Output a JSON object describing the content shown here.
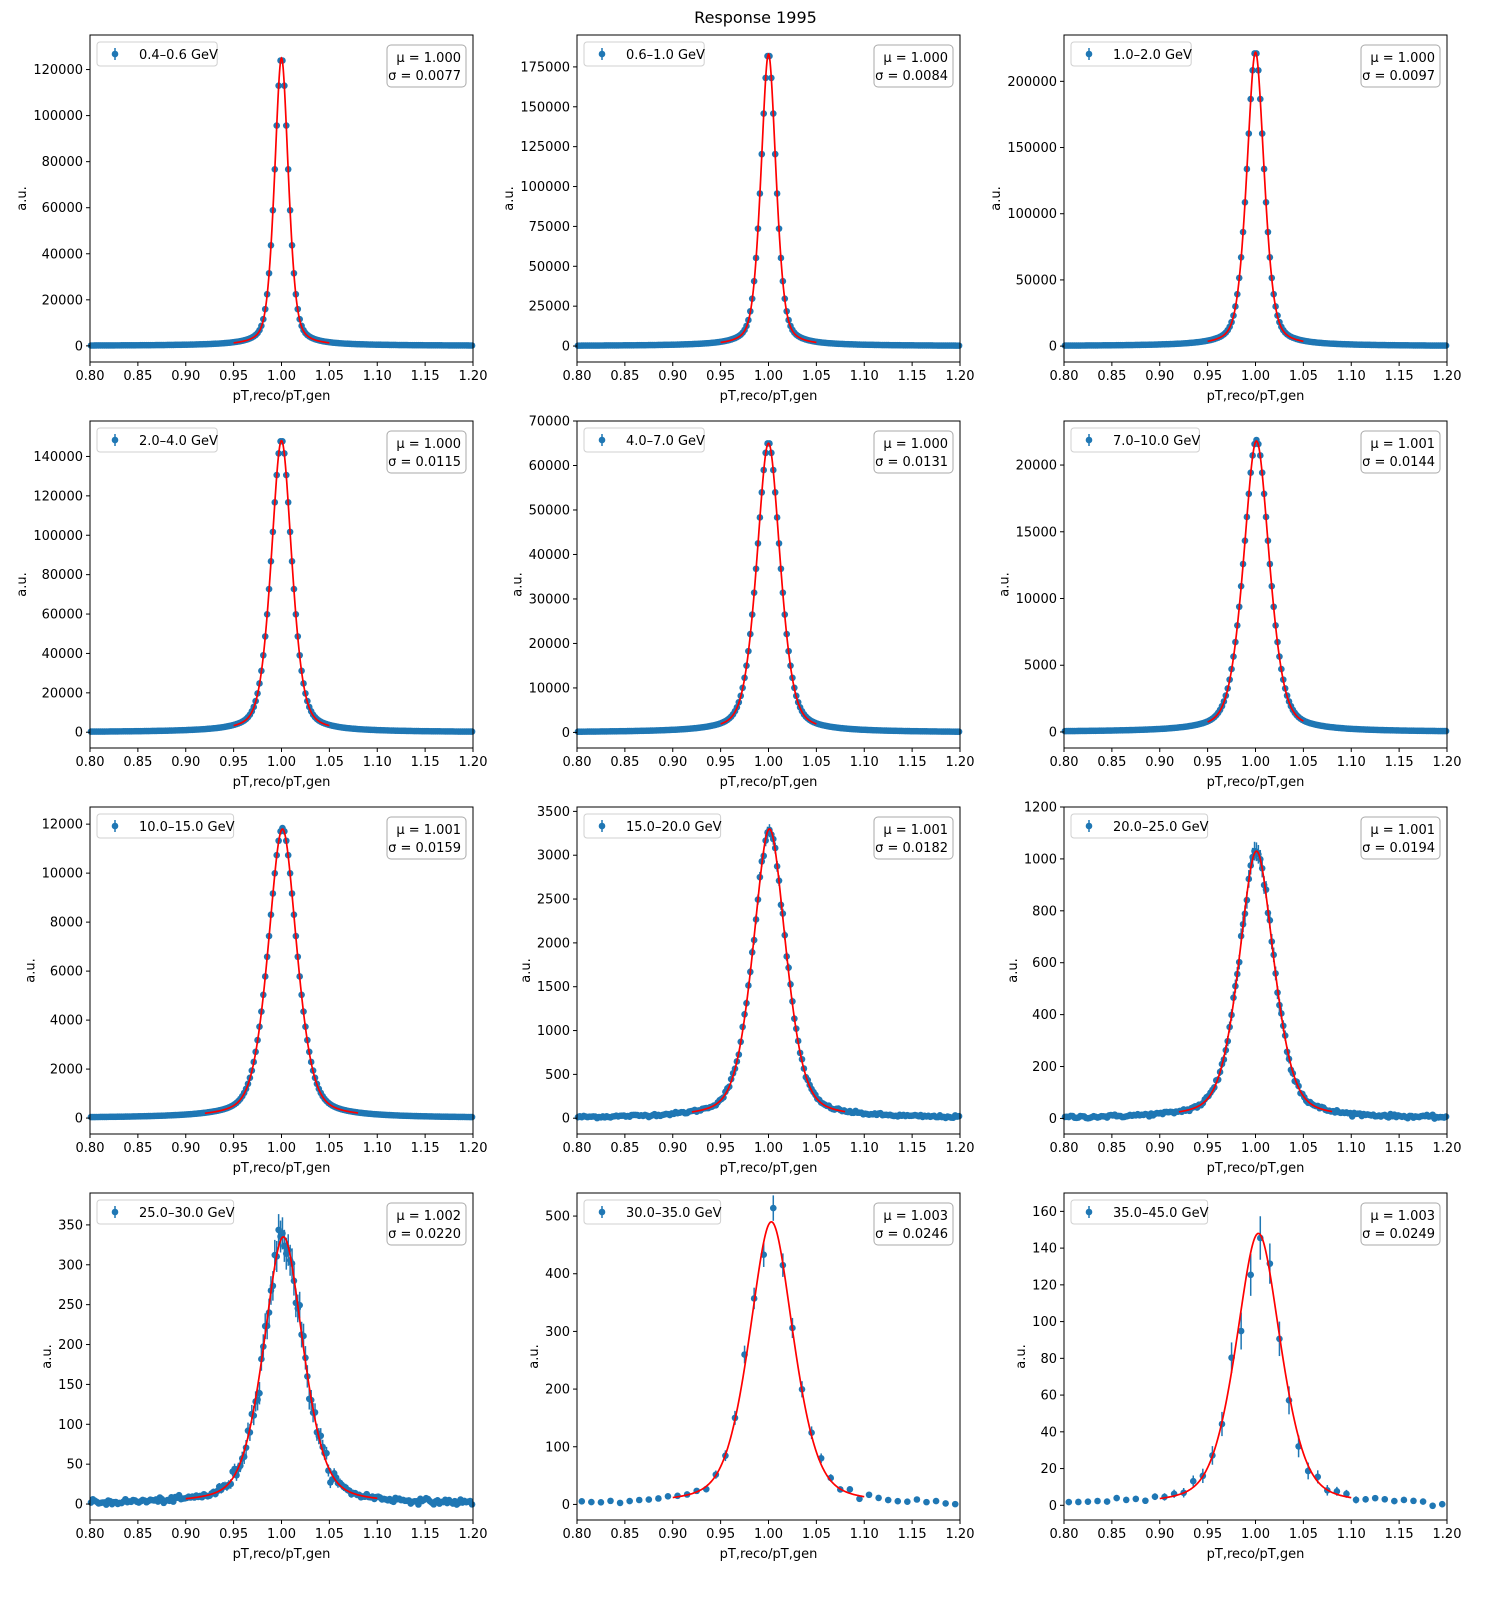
{
  "figure_title": "Response 1995",
  "colors": {
    "data": "#1f77b4",
    "fit": "#ff0000",
    "axes": "#000000",
    "box_edge": "#aaaaaa"
  },
  "chart_data": [
    {
      "type": "scatter",
      "panel_label": "0.4–0.6 GeV",
      "mu_text": "μ = 1.000",
      "sigma_text": "σ = 0.0077",
      "mu": 1.0,
      "sigma": 0.0077,
      "peak": 125000,
      "stat_rel": 0.003,
      "fit_range": [
        0.95,
        1.05
      ],
      "xlim": [
        0.8,
        1.2
      ],
      "ylim": [
        -7000,
        135000
      ],
      "xticks": [
        "0.80",
        "0.85",
        "0.90",
        "0.95",
        "1.00",
        "1.05",
        "1.10",
        "1.15",
        "1.20"
      ],
      "yticks": [
        0,
        20000,
        40000,
        60000,
        80000,
        100000,
        120000
      ],
      "xlabel": "pT,reco/pT,gen",
      "ylabel": "a.u.",
      "legend": "data with error bars",
      "legend_loc": "upper left",
      "stats_loc": "upper right"
    },
    {
      "type": "scatter",
      "panel_label": "0.6–1.0 GeV",
      "mu_text": "μ = 1.000",
      "sigma_text": "σ = 0.0084",
      "mu": 1.0,
      "sigma": 0.0084,
      "peak": 183000,
      "stat_rel": 0.003,
      "fit_range": [
        0.95,
        1.05
      ],
      "xlim": [
        0.8,
        1.2
      ],
      "ylim": [
        -10000,
        195000
      ],
      "xticks": [
        "0.80",
        "0.85",
        "0.90",
        "0.95",
        "1.00",
        "1.05",
        "1.10",
        "1.15",
        "1.20"
      ],
      "yticks": [
        0,
        25000,
        50000,
        75000,
        100000,
        125000,
        150000,
        175000
      ],
      "xlabel": "pT,reco/pT,gen",
      "ylabel": "a.u.",
      "legend": "data with error bars",
      "legend_loc": "upper left",
      "stats_loc": "upper right"
    },
    {
      "type": "scatter",
      "panel_label": "1.0–2.0 GeV",
      "mu_text": "μ = 1.000",
      "sigma_text": "σ = 0.0097",
      "mu": 1.0,
      "sigma": 0.0097,
      "peak": 222000,
      "stat_rel": 0.003,
      "fit_range": [
        0.95,
        1.05
      ],
      "xlim": [
        0.8,
        1.2
      ],
      "ylim": [
        -12000,
        235000
      ],
      "xticks": [
        "0.80",
        "0.85",
        "0.90",
        "0.95",
        "1.00",
        "1.05",
        "1.10",
        "1.15",
        "1.20"
      ],
      "yticks": [
        0,
        50000,
        100000,
        150000,
        200000
      ],
      "xlabel": "pT,reco/pT,gen",
      "ylabel": "a.u.",
      "legend": "data with error bars",
      "legend_loc": "upper left",
      "stats_loc": "upper right"
    },
    {
      "type": "scatter",
      "panel_label": "2.0–4.0 GeV",
      "mu_text": "μ = 1.000",
      "sigma_text": "σ = 0.0115",
      "mu": 1.0,
      "sigma": 0.0115,
      "peak": 148000,
      "stat_rel": 0.003,
      "fit_range": [
        0.95,
        1.05
      ],
      "xlim": [
        0.8,
        1.2
      ],
      "ylim": [
        -8000,
        158000
      ],
      "xticks": [
        "0.80",
        "0.85",
        "0.90",
        "0.95",
        "1.00",
        "1.05",
        "1.10",
        "1.15",
        "1.20"
      ],
      "yticks": [
        0,
        20000,
        40000,
        60000,
        80000,
        100000,
        120000,
        140000
      ],
      "xlabel": "pT,reco/pT,gen",
      "ylabel": "a.u.",
      "legend": "data with error bars",
      "legend_loc": "upper left",
      "stats_loc": "upper right"
    },
    {
      "type": "scatter",
      "panel_label": "4.0–7.0 GeV",
      "mu_text": "μ = 1.000",
      "sigma_text": "σ = 0.0131",
      "mu": 1.0,
      "sigma": 0.0131,
      "peak": 65000,
      "stat_rel": 0.004,
      "fit_range": [
        0.95,
        1.05
      ],
      "xlim": [
        0.8,
        1.2
      ],
      "ylim": [
        -3500,
        70000
      ],
      "xticks": [
        "0.80",
        "0.85",
        "0.90",
        "0.95",
        "1.00",
        "1.05",
        "1.10",
        "1.15",
        "1.20"
      ],
      "yticks": [
        0,
        10000,
        20000,
        30000,
        40000,
        50000,
        60000,
        70000
      ],
      "xlabel": "pT,reco/pT,gen",
      "ylabel": "a.u.",
      "legend": "data with error bars",
      "legend_loc": "upper left",
      "stats_loc": "upper right"
    },
    {
      "type": "scatter",
      "panel_label": "7.0–10.0 GeV",
      "mu_text": "μ = 1.001",
      "sigma_text": "σ = 0.0144",
      "mu": 1.001,
      "sigma": 0.0144,
      "peak": 21800,
      "stat_rel": 0.006,
      "fit_range": [
        0.95,
        1.05
      ],
      "xlim": [
        0.8,
        1.2
      ],
      "ylim": [
        -1200,
        23300
      ],
      "xticks": [
        "0.80",
        "0.85",
        "0.90",
        "0.95",
        "1.00",
        "1.05",
        "1.10",
        "1.15",
        "1.20"
      ],
      "yticks": [
        0,
        5000,
        10000,
        15000,
        20000
      ],
      "xlabel": "pT,reco/pT,gen",
      "ylabel": "a.u.",
      "legend": "data with error bars",
      "legend_loc": "upper left",
      "stats_loc": "upper right"
    },
    {
      "type": "scatter",
      "panel_label": "10.0–15.0 GeV",
      "mu_text": "μ = 1.001",
      "sigma_text": "σ = 0.0159",
      "mu": 1.001,
      "sigma": 0.0159,
      "peak": 11800,
      "stat_rel": 0.01,
      "fit_range": [
        0.92,
        1.08
      ],
      "xlim": [
        0.8,
        1.2
      ],
      "ylim": [
        -650,
        12700
      ],
      "xticks": [
        "0.80",
        "0.85",
        "0.90",
        "0.95",
        "1.00",
        "1.05",
        "1.10",
        "1.15",
        "1.20"
      ],
      "yticks": [
        0,
        2000,
        4000,
        6000,
        8000,
        10000,
        12000
      ],
      "xlabel": "pT,reco/pT,gen",
      "ylabel": "a.u.",
      "legend": "data with error bars",
      "legend_loc": "upper left",
      "stats_loc": "upper right"
    },
    {
      "type": "scatter",
      "panel_label": "15.0–20.0 GeV",
      "mu_text": "μ = 1.001",
      "sigma_text": "σ = 0.0182",
      "mu": 1.001,
      "sigma": 0.0182,
      "peak": 3300,
      "stat_rel": 0.02,
      "fit_range": [
        0.92,
        1.08
      ],
      "xlim": [
        0.8,
        1.2
      ],
      "ylim": [
        -180,
        3550
      ],
      "xticks": [
        "0.80",
        "0.85",
        "0.90",
        "0.95",
        "1.00",
        "1.05",
        "1.10",
        "1.15",
        "1.20"
      ],
      "yticks": [
        0,
        500,
        1000,
        1500,
        2000,
        2500,
        3000,
        3500
      ],
      "xlabel": "pT,reco/pT,gen",
      "ylabel": "a.u.",
      "legend": "data with error bars",
      "legend_loc": "upper left",
      "stats_loc": "upper right"
    },
    {
      "type": "scatter",
      "panel_label": "20.0–25.0 GeV",
      "mu_text": "μ = 1.001",
      "sigma_text": "σ = 0.0194",
      "mu": 1.001,
      "sigma": 0.0194,
      "peak": 1030,
      "stat_rel": 0.035,
      "fit_range": [
        0.92,
        1.08
      ],
      "xlim": [
        0.8,
        1.2
      ],
      "ylim": [
        -60,
        1200
      ],
      "xticks": [
        "0.80",
        "0.85",
        "0.90",
        "0.95",
        "1.00",
        "1.05",
        "1.10",
        "1.15",
        "1.20"
      ],
      "yticks": [
        0,
        200,
        400,
        600,
        800,
        1000,
        1200
      ],
      "xlabel": "pT,reco/pT,gen",
      "ylabel": "a.u.",
      "legend": "data with error bars",
      "legend_loc": "upper left",
      "stats_loc": "upper right"
    },
    {
      "type": "scatter",
      "panel_label": "25.0–30.0 GeV",
      "mu_text": "μ = 1.002",
      "sigma_text": "σ = 0.0220",
      "mu": 1.002,
      "sigma": 0.022,
      "peak": 335,
      "stat_rel": 0.06,
      "fit_range": [
        0.9,
        1.1
      ],
      "xlim": [
        0.8,
        1.2
      ],
      "ylim": [
        -20,
        390
      ],
      "xticks": [
        "0.80",
        "0.85",
        "0.90",
        "0.95",
        "1.00",
        "1.05",
        "1.10",
        "1.15",
        "1.20"
      ],
      "yticks": [
        0,
        50,
        100,
        150,
        200,
        250,
        300,
        350
      ],
      "xlabel": "pT,reco/pT,gen",
      "ylabel": "a.u.",
      "legend": "data with error bars",
      "legend_loc": "upper left",
      "stats_loc": "upper right"
    },
    {
      "type": "scatter",
      "panel_label": "30.0–35.0 GeV",
      "mu_text": "μ = 1.003",
      "sigma_text": "σ = 0.0246",
      "mu": 1.003,
      "sigma": 0.0246,
      "peak": 490,
      "stat_rel": 0.045,
      "fit_range": [
        0.9,
        1.1
      ],
      "xlim": [
        0.8,
        1.2
      ],
      "ylim": [
        -27,
        540
      ],
      "xticks": [
        "0.80",
        "0.85",
        "0.90",
        "0.95",
        "1.00",
        "1.05",
        "1.10",
        "1.15",
        "1.20"
      ],
      "yticks": [
        0,
        100,
        200,
        300,
        400,
        500
      ],
      "xlabel": "pT,reco/pT,gen",
      "ylabel": "a.u.",
      "legend": "data with error bars",
      "legend_loc": "upper left",
      "stats_loc": "upper right"
    },
    {
      "type": "scatter",
      "panel_label": "35.0–45.0 GeV",
      "mu_text": "μ = 1.003",
      "sigma_text": "σ = 0.0249",
      "mu": 1.003,
      "sigma": 0.0249,
      "peak": 148,
      "stat_rel": 0.08,
      "fit_range": [
        0.9,
        1.1
      ],
      "xlim": [
        0.8,
        1.2
      ],
      "ylim": [
        -8,
        170
      ],
      "xticks": [
        "0.80",
        "0.85",
        "0.90",
        "0.95",
        "1.00",
        "1.05",
        "1.10",
        "1.15",
        "1.20"
      ],
      "yticks": [
        0,
        20,
        40,
        60,
        80,
        100,
        120,
        140,
        160
      ],
      "xlabel": "pT,reco/pT,gen",
      "ylabel": "a.u.",
      "legend": "data with error bars",
      "legend_loc": "upper left",
      "stats_loc": "upper right"
    }
  ]
}
